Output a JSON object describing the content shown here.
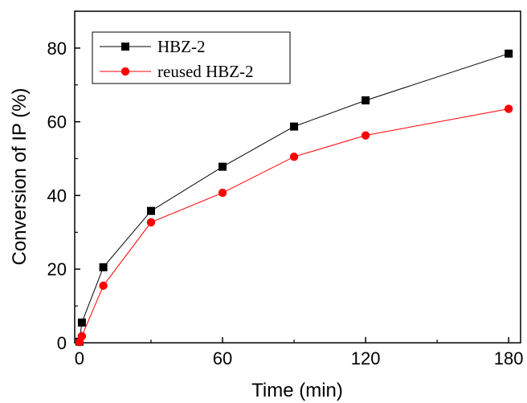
{
  "chart_data": {
    "type": "line",
    "title": "",
    "xlabel": "Time (min)",
    "ylabel": "Conversion of IP (%)",
    "xlim": [
      -2,
      185
    ],
    "ylim": [
      0,
      90
    ],
    "xticks": [
      0,
      60,
      120,
      180
    ],
    "yticks": [
      0,
      20,
      40,
      60,
      80
    ],
    "grid": false,
    "legend_position": "top-left",
    "series": [
      {
        "name": "HBZ-2",
        "marker": "square",
        "color": "#000000",
        "x": [
          0,
          1,
          10,
          30,
          60,
          90,
          120,
          180
        ],
        "y": [
          0.3,
          5.5,
          20.5,
          35.8,
          47.8,
          58.7,
          65.8,
          78.5
        ]
      },
      {
        "name": "reused HBZ-2",
        "marker": "circle",
        "color": "#ff0000",
        "x": [
          0,
          1,
          10,
          30,
          60,
          90,
          120,
          180
        ],
        "y": [
          0.2,
          1.8,
          15.5,
          32.7,
          40.7,
          50.5,
          56.3,
          63.5
        ]
      }
    ]
  }
}
